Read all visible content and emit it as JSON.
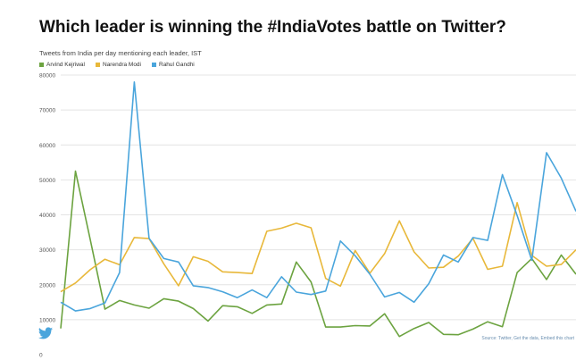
{
  "chart_data": {
    "type": "line",
    "title": "Which leader is winning the #IndiaVotes battle on Twitter?",
    "subtitle": "Tweets from India per day mentioning each leader, IST",
    "xlabel": "",
    "ylabel": "",
    "ylim": [
      0,
      80000
    ],
    "yticks": [
      0,
      10000,
      20000,
      30000,
      40000,
      50000,
      60000,
      70000,
      80000
    ],
    "grid": true,
    "legend_position": "top-left",
    "x": [
      0,
      1,
      2,
      3,
      4,
      5,
      6,
      7,
      8,
      9,
      10,
      11,
      12,
      13,
      14,
      15,
      16,
      17,
      18,
      19,
      20,
      21,
      22,
      23,
      24,
      25,
      26,
      27,
      28,
      29,
      30,
      31,
      32,
      33,
      34,
      35
    ],
    "series": [
      {
        "name": "Arvind Kejriwal",
        "color": "#6ca340",
        "values": [
          7500,
          52500,
          33000,
          13000,
          15500,
          14200,
          13300,
          16000,
          15300,
          13200,
          9600,
          14000,
          13700,
          11800,
          14200,
          14500,
          26500,
          20800,
          7900,
          7900,
          8300,
          8200,
          11700,
          5200,
          7500,
          9200,
          5800,
          5700,
          7300,
          9400,
          8000,
          23500,
          27500,
          21500,
          28500,
          23000
        ]
      },
      {
        "name": "Narendra Modi",
        "color": "#e8b83a",
        "values": [
          18000,
          20500,
          24300,
          27300,
          25700,
          33500,
          33200,
          26000,
          19700,
          28000,
          26700,
          23700,
          23500,
          23200,
          35300,
          36200,
          37600,
          36300,
          21800,
          19600,
          29800,
          23300,
          28900,
          38300,
          29400,
          24800,
          25000,
          28200,
          33300,
          24400,
          25300,
          43500,
          28400,
          25300,
          25800,
          30000
        ]
      },
      {
        "name": "Rahul Gandhi",
        "color": "#4aa5dc",
        "values": [
          15000,
          12500,
          13200,
          14800,
          23500,
          78000,
          33300,
          27500,
          26500,
          19700,
          19200,
          18000,
          16300,
          18500,
          16300,
          22300,
          17900,
          17200,
          18200,
          32500,
          28300,
          23000,
          16500,
          17800,
          15000,
          20300,
          28500,
          26500,
          33500,
          32700,
          51500,
          39800,
          27000,
          57800,
          50500,
          41000
        ]
      }
    ]
  },
  "twitter_logo": {
    "icon": "twitter-bird-icon",
    "color": "#4aa5dc"
  },
  "source": {
    "prefix": "Source: ",
    "twitter_link": "Twitter",
    "data_link": "Get the data",
    "embed_link": "Embed this chart"
  }
}
